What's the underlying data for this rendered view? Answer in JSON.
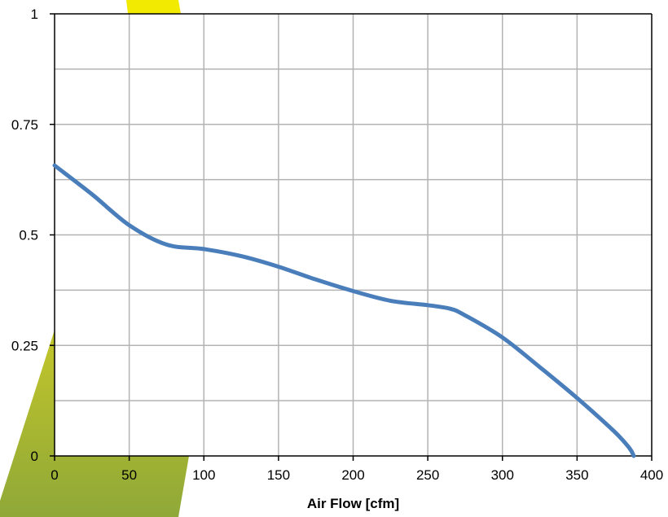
{
  "colors": {
    "background": "#ffffff",
    "grid": "#b3b3b3",
    "axis": "#000000",
    "series": "#4a7ebb",
    "decor_yellow": "#f2ea00",
    "decor_olive_top": "#c3c62a",
    "decor_olive_bottom": "#8fa838"
  },
  "chart_data": {
    "type": "line",
    "title": "",
    "xlabel": "Air Flow [cfm]",
    "ylabel": "",
    "xlim": [
      0,
      400
    ],
    "ylim": [
      0,
      1
    ],
    "x_ticks": [
      0,
      50,
      100,
      150,
      200,
      250,
      300,
      350,
      400
    ],
    "x_tick_labels": [
      "0",
      "50",
      "100",
      "150",
      "200",
      "250",
      "300",
      "350",
      "400"
    ],
    "x_minor_grid": [],
    "y_ticks": [
      0,
      0.25,
      0.5,
      0.75,
      1
    ],
    "y_tick_labels": [
      "0",
      "0.25",
      "0.5",
      "0.75",
      "1"
    ],
    "y_minor_grid": [
      0.125,
      0.375,
      0.625,
      0.875
    ],
    "grid": true,
    "legend": "none",
    "series": [
      {
        "color": "#4a7ebb",
        "x": [
          0,
          25,
          50,
          75,
          100,
          125,
          150,
          175,
          200,
          225,
          250,
          265,
          275,
          300,
          325,
          350,
          375,
          385,
          388
        ],
        "y": [
          0.657,
          0.592,
          0.522,
          0.478,
          0.468,
          0.452,
          0.428,
          0.399,
          0.373,
          0.351,
          0.341,
          0.333,
          0.318,
          0.268,
          0.201,
          0.131,
          0.055,
          0.018,
          0.0
        ]
      }
    ]
  }
}
